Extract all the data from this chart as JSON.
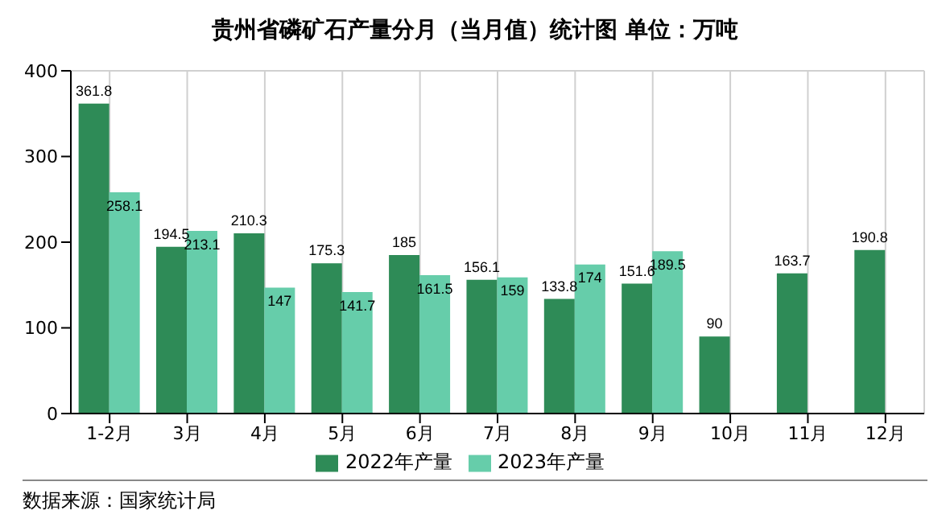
{
  "chart_data": {
    "type": "bar",
    "title": "贵州省磷矿石产量分月（当月值）统计图 单位：万吨",
    "categories": [
      "1-2月",
      "3月",
      "4月",
      "5月",
      "6月",
      "7月",
      "8月",
      "9月",
      "10月",
      "11月",
      "12月"
    ],
    "series": [
      {
        "name": "2022年产量",
        "color": "#2e8b57",
        "values": [
          361.8,
          194.5,
          210.3,
          175.3,
          185,
          156.1,
          133.8,
          151.6,
          90,
          163.7,
          190.8
        ]
      },
      {
        "name": "2023年产量",
        "color": "#66cdaa",
        "values": [
          258.1,
          213.1,
          147,
          141.7,
          161.5,
          159,
          174,
          189.5,
          null,
          null,
          null
        ]
      }
    ],
    "ylim": [
      0,
      400
    ],
    "yticks": [
      0,
      100,
      200,
      300,
      400
    ],
    "grid": true,
    "legend": "bottom",
    "data_labels": true,
    "annotations": [
      "数据来源：国家统计局"
    ]
  }
}
